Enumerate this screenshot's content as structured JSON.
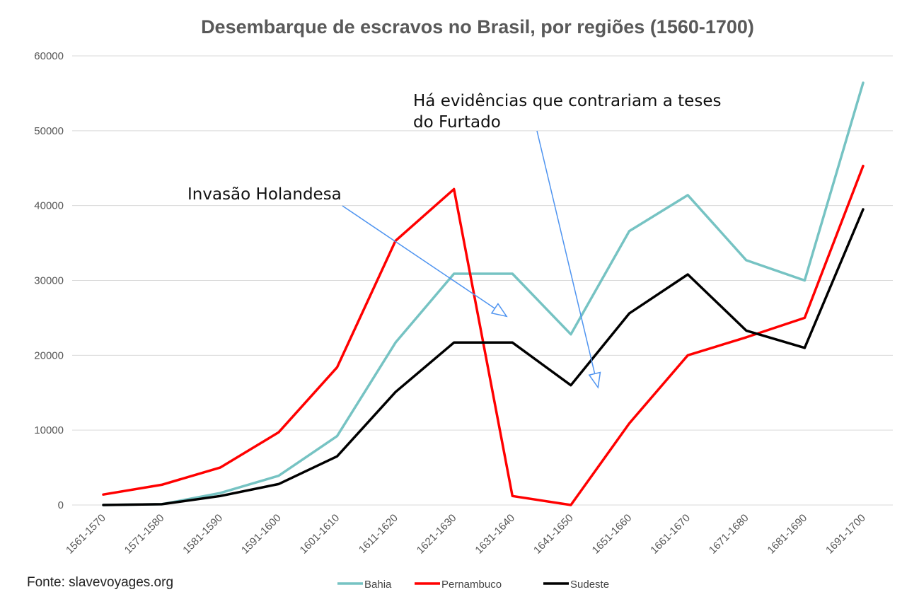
{
  "chart_data": {
    "type": "line",
    "title": "Desembarque de escravos no Brasil, por regiões (1560-1700)",
    "xlabel": "",
    "ylabel": "",
    "ylim": [
      0,
      60000
    ],
    "yticks": [
      "0",
      "10000",
      "20000",
      "30000",
      "40000",
      "50000",
      "60000"
    ],
    "ytick_values": [
      0,
      10000,
      20000,
      30000,
      40000,
      50000,
      60000
    ],
    "categories": [
      "1561-1570",
      "1571-1580",
      "1581-1590",
      "1591-1600",
      "1601-1610",
      "1611-1620",
      "1621-1630",
      "1631-1640",
      "1641-1650",
      "1651-1660",
      "1661-1670",
      "1671-1680",
      "1681-1690",
      "1691-1700"
    ],
    "series": [
      {
        "name": "Bahia",
        "color": "#76c3c3",
        "values": [
          0,
          100,
          1600,
          3900,
          9200,
          21700,
          30900,
          30900,
          22800,
          36600,
          41400,
          32700,
          30000,
          56400
        ]
      },
      {
        "name": "Pernambuco",
        "color": "#ff0000",
        "values": [
          1400,
          2700,
          5000,
          9700,
          18400,
          35300,
          42200,
          1200,
          0,
          10900,
          20000,
          22400,
          25000,
          45300
        ]
      },
      {
        "name": "Sudeste",
        "color": "#000000",
        "values": [
          0,
          100,
          1200,
          2800,
          6500,
          15100,
          21700,
          21700,
          16000,
          25600,
          30800,
          23300,
          21000,
          39500
        ]
      }
    ],
    "legend": "bottom",
    "grid": true,
    "annotations": [
      {
        "lines": [
          "Invasão Holandesa"
        ],
        "arrow_to": {
          "category": 7,
          "value": 25200
        }
      },
      {
        "lines": [
          "Há evidências que contrariam a teses",
          "do Furtado"
        ],
        "arrow_to": {
          "category": 9,
          "value": 15700
        }
      }
    ],
    "source": "Fonte: slavevoyages.org"
  }
}
